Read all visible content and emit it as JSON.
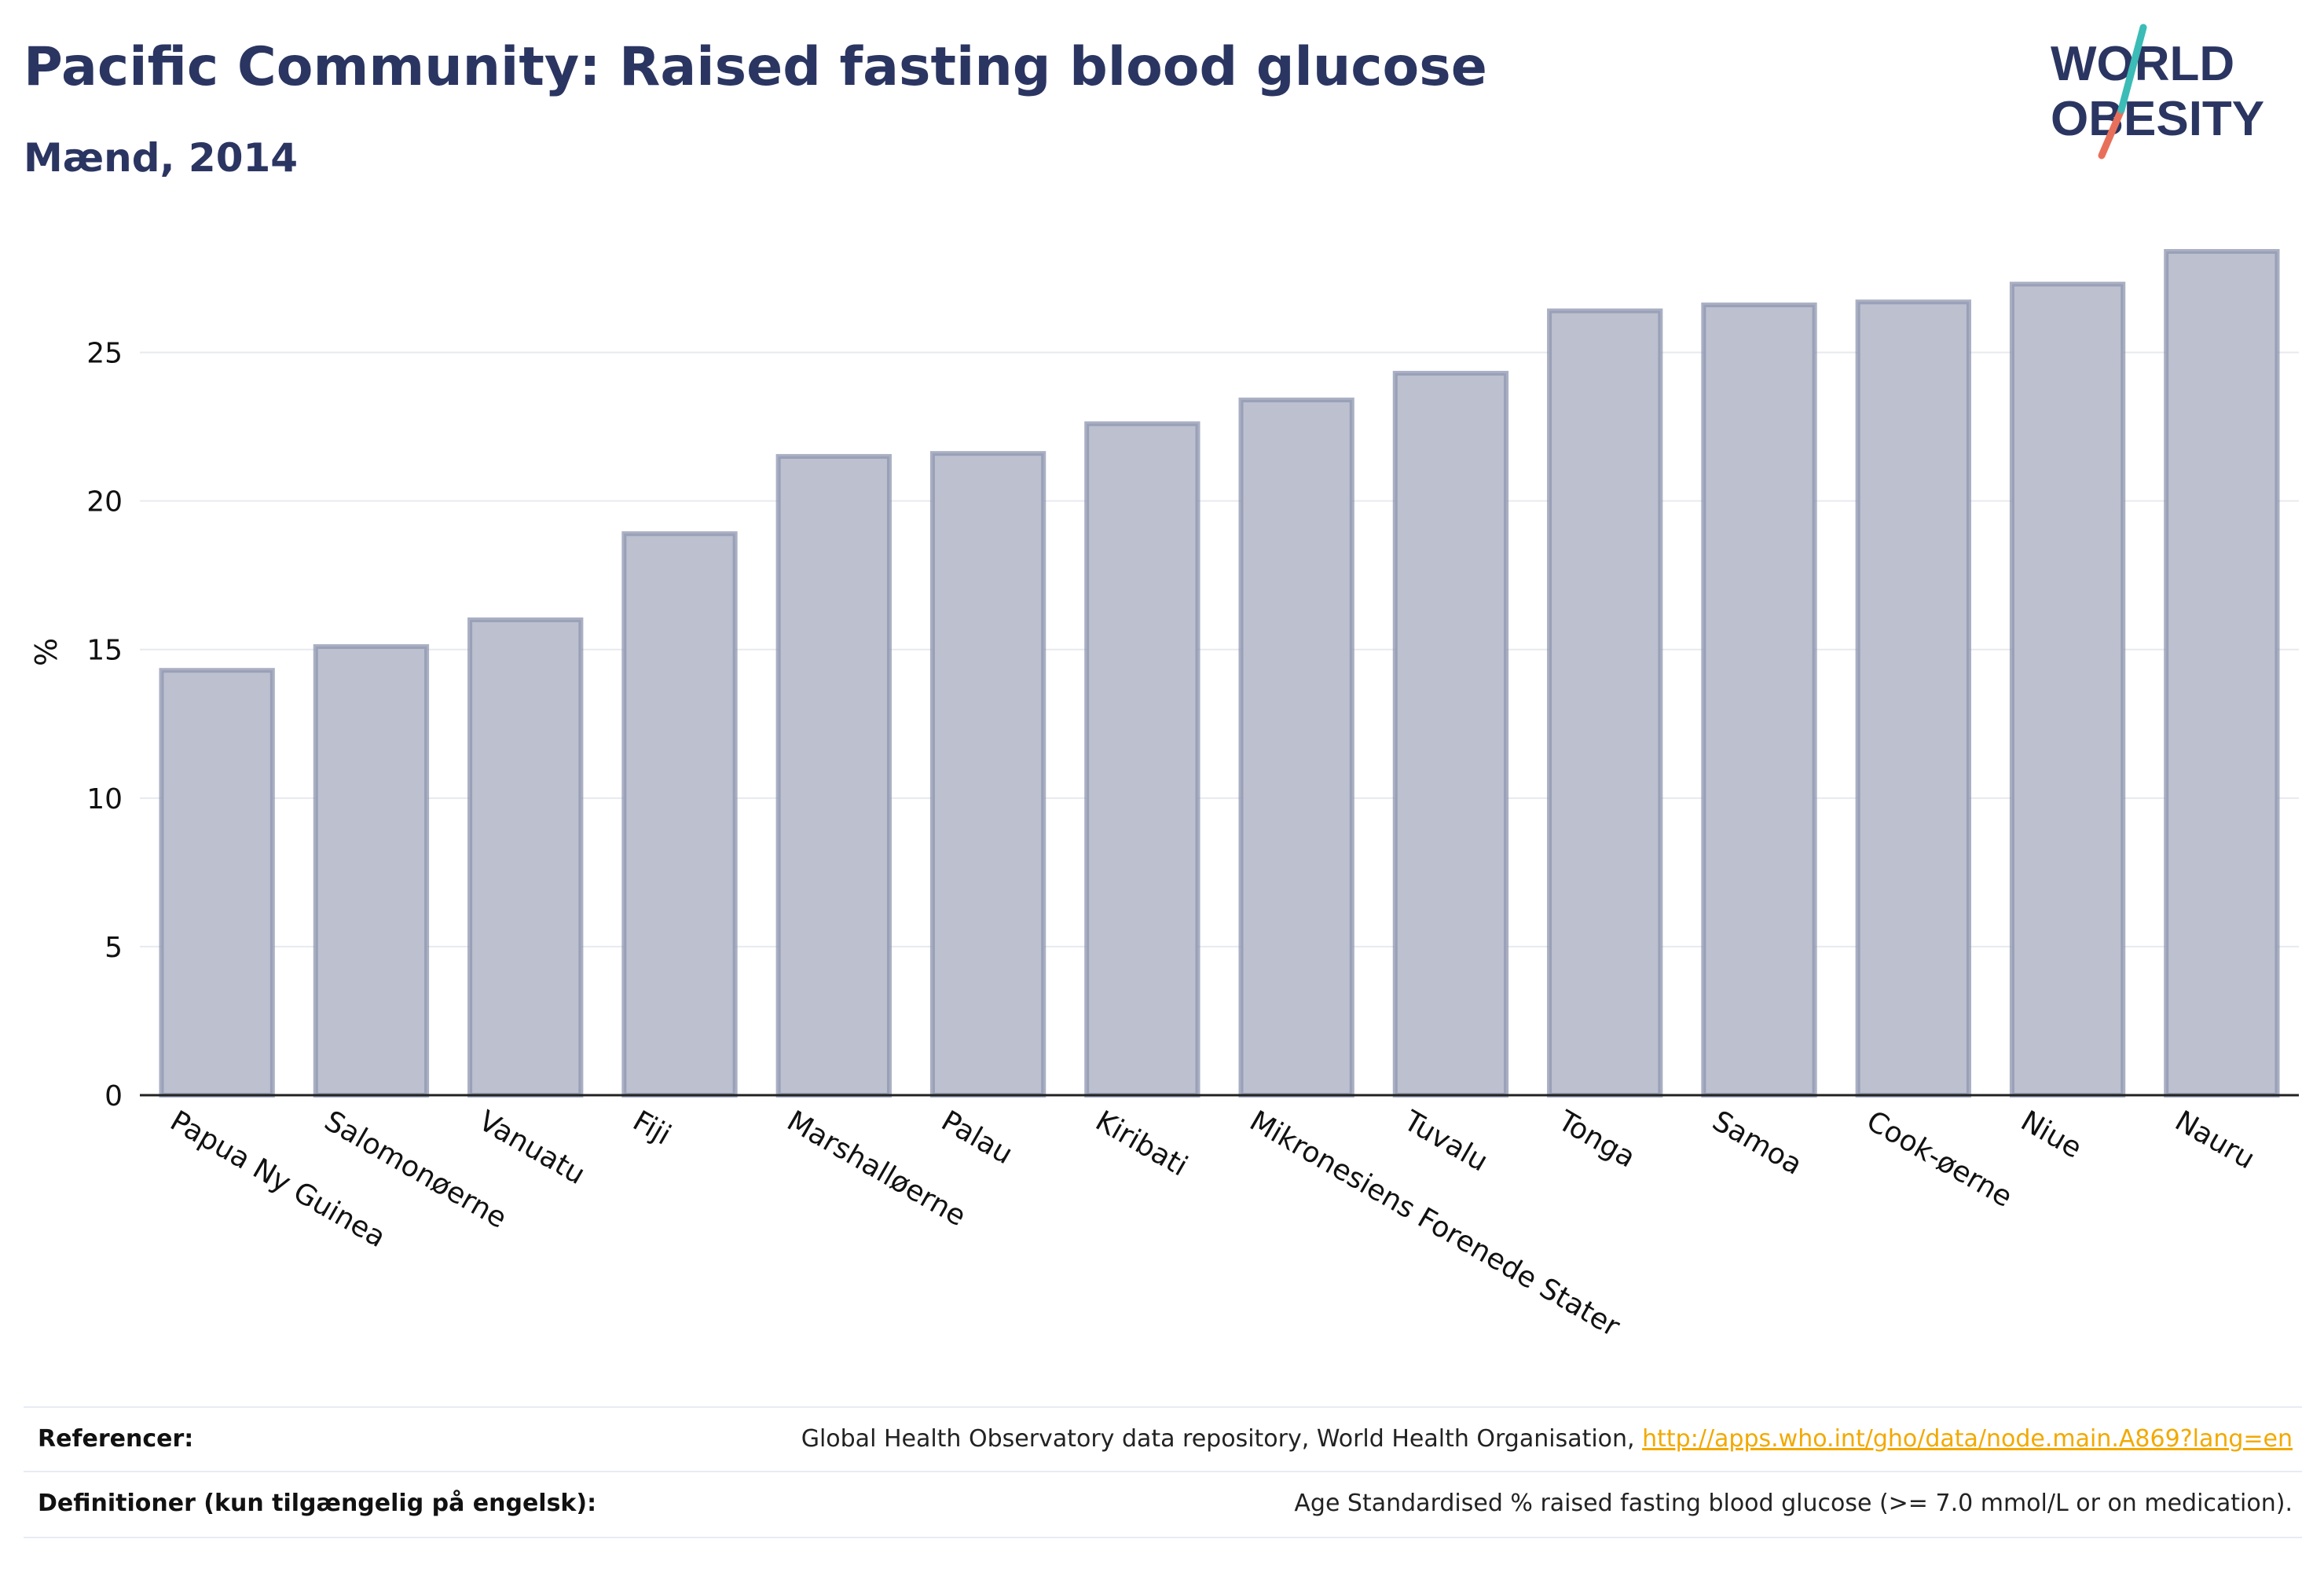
{
  "header": {
    "title": "Pacific Community: Raised fasting blood glucose",
    "subtitle": "Mænd, 2014"
  },
  "logo": {
    "line1": "WORLD",
    "line2": "OBESITY"
  },
  "chart_data": {
    "type": "bar",
    "categories": [
      "Papua Ny Guinea",
      "Salomonøerne",
      "Vanuatu",
      "Fiji",
      "Marshalløerne",
      "Palau",
      "Kiribati",
      "Mikronesiens Forenede Stater",
      "Tuvalu",
      "Tonga",
      "Samoa",
      "Cook-øerne",
      "Niue",
      "Nauru"
    ],
    "values": [
      14.3,
      15.1,
      16.0,
      18.9,
      21.5,
      21.6,
      22.6,
      23.4,
      24.3,
      26.4,
      26.6,
      26.7,
      27.3,
      28.4
    ],
    "ylabel": "%",
    "xlabel": "",
    "yticks": [
      0,
      5,
      10,
      15,
      20,
      25
    ],
    "ylim": [
      0,
      28.4
    ],
    "grid": true,
    "colors": {
      "bar_fill": "#bcc0cf",
      "bar_stroke": "#8e95af",
      "grid": "#e8eaf0",
      "axis": "#222222"
    }
  },
  "footer": {
    "references_label": "Referencer:",
    "references_text": "Global Health Observatory data repository, World Health Organisation,",
    "references_link": "http://apps.who.int/gho/data/node.main.A869?lang=en",
    "definitions_label": "Definitioner (kun tilgængelig på engelsk):",
    "definitions_text": "Age Standardised % raised fasting blood glucose (>= 7.0 mmol/L or on medication)."
  }
}
